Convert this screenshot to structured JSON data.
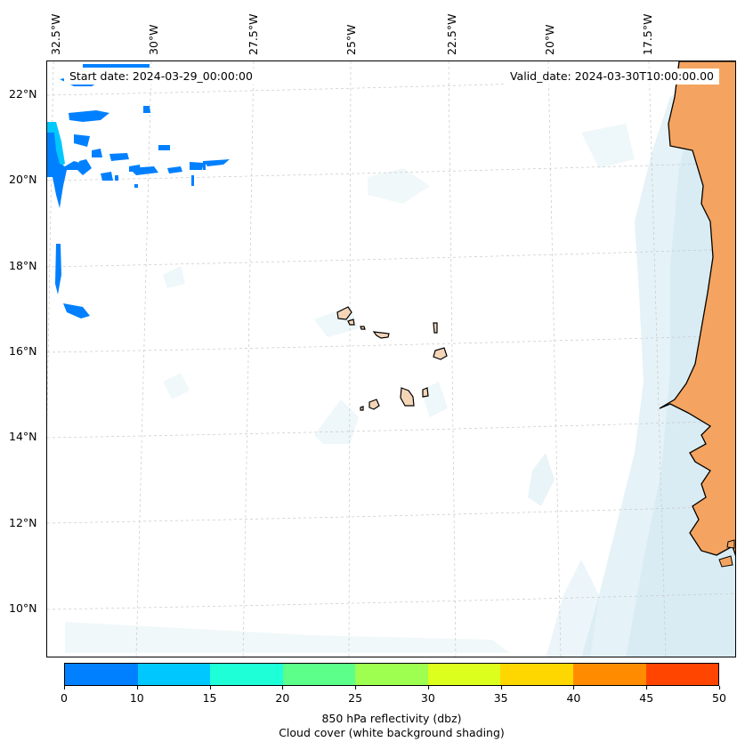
{
  "map": {
    "start_date": "Start date: 2024-03-29_00:00:00",
    "valid_date": "Valid_date: 2024-03-30T10:00:00.00",
    "lon_labels": [
      "32.5°W",
      "30°W",
      "27.5°W",
      "25°W",
      "22.5°W",
      "20°W",
      "17.5°W"
    ],
    "lat_labels": [
      "22°N",
      "20°N",
      "18°N",
      "16°N",
      "14°N",
      "12°N",
      "10°N"
    ],
    "colors": {
      "land": "#f4a460",
      "island_fill": "#f5d5b8",
      "cloud": "#cfe7f0",
      "reflectivity_low": "#0080ff",
      "reflectivity_mid": "#00c8ff"
    }
  },
  "colorbar": {
    "ticks": [
      "0",
      "10",
      "15",
      "20",
      "25",
      "30",
      "35",
      "40",
      "45",
      "50"
    ],
    "colors": [
      "#0080ff",
      "#00c8ff",
      "#1effd8",
      "#5cff8a",
      "#9eff50",
      "#dcff1e",
      "#ffd700",
      "#ff8c00",
      "#ff4500"
    ],
    "label": "850 hPa reflectivity (dbz)",
    "sublabel": "Cloud cover (white background shading)"
  }
}
